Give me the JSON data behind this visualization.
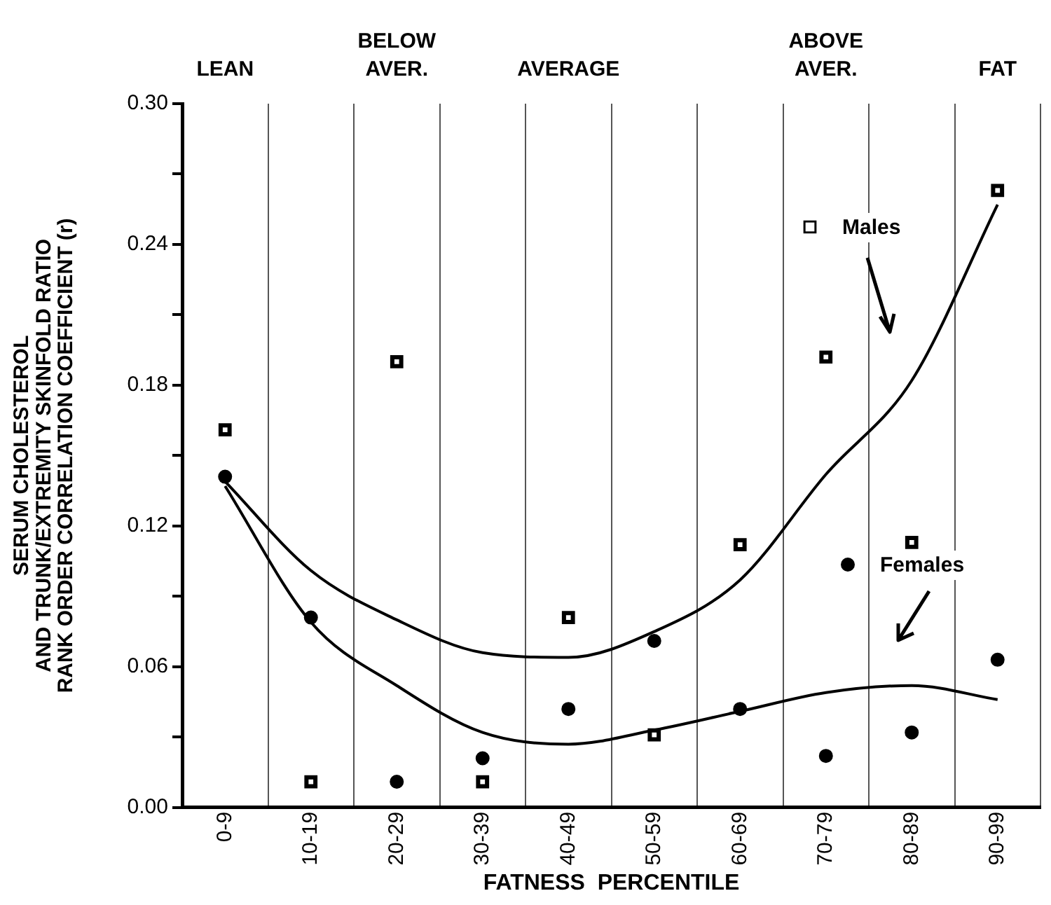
{
  "chart_data": {
    "type": "scatter",
    "xlabel": "FATNESS  PERCENTILE",
    "ylabel": "SERUM CHOLESTEROL\nAND TRUNK/EXTREMITY SKINFOLD RATIO\nRANK ORDER CORRELATION COEFFICIENT (r)",
    "annotations": [
      "LEAN",
      "BELOW AVER.",
      "AVERAGE",
      "ABOVE AVER.",
      "FAT"
    ],
    "categories": [
      "0-9",
      "10-19",
      "20-29",
      "30-39",
      "40-49",
      "50-59",
      "60-69",
      "70-79",
      "80-89",
      "90-99"
    ],
    "series": [
      {
        "name": "Males",
        "marker": "square",
        "color": "#000000",
        "values": [
          0.161,
          0.011,
          0.19,
          0.011,
          0.081,
          0.031,
          0.112,
          0.192,
          0.113,
          0.263
        ]
      },
      {
        "name": "Females",
        "marker": "circle",
        "color": "#000000",
        "values": [
          0.141,
          0.081,
          0.011,
          0.021,
          0.042,
          0.071,
          0.042,
          0.022,
          0.032,
          0.063
        ]
      },
      {
        "type": "line",
        "marker": "none",
        "color": "#000000",
        "values": [
          0.139,
          0.101,
          0.08,
          0.066,
          0.064,
          0.075,
          0.097,
          0.142,
          0.182,
          0.257
        ]
      },
      {
        "type": "line",
        "marker": "none",
        "color": "#000000",
        "values": [
          0.137,
          0.079,
          0.052,
          0.032,
          0.027,
          0.033,
          0.041,
          0.049,
          0.052,
          0.046
        ]
      }
    ],
    "ylim": [
      0,
      0.3
    ],
    "yticks": [
      {
        "value": 0,
        "label": "0.00"
      },
      {
        "value": 0.03,
        "label": null
      },
      {
        "value": 0.06,
        "label": "0.06"
      },
      {
        "value": 0.09,
        "label": null
      },
      {
        "value": 0.12,
        "label": "0.12"
      },
      {
        "value": 0.15,
        "label": null
      },
      {
        "value": 0.18,
        "label": "0.18"
      },
      {
        "value": 0.21,
        "label": null
      },
      {
        "value": 0.24,
        "label": "0.24"
      },
      {
        "value": 0.27,
        "label": null
      },
      {
        "value": 0.3,
        "label": "0.30"
      }
    ],
    "grid": "x",
    "legend": "right"
  }
}
